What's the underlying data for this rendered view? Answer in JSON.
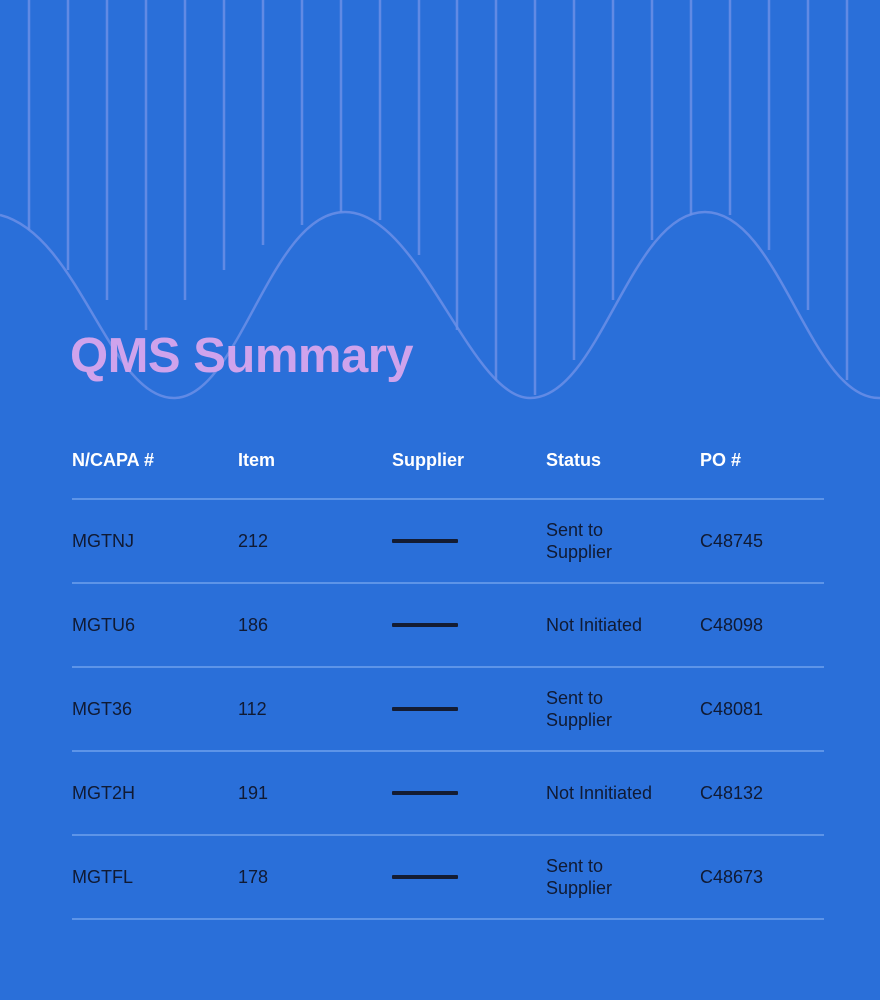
{
  "page": {
    "title": "QMS Summary"
  },
  "table": {
    "columns": [
      "N/CAPA #",
      "Item",
      "Supplier",
      "Status",
      "PO #"
    ],
    "rows": [
      {
        "id": "MGTNJ",
        "item": "212",
        "supplier": "",
        "status": "Sent to Supplier",
        "po": "C48745"
      },
      {
        "id": "MGTU6",
        "item": "186",
        "supplier": "",
        "status": "Not Initiated",
        "po": "C48098"
      },
      {
        "id": "MGT36",
        "item": "112",
        "supplier": "",
        "status": "Sent to Supplier",
        "po": "C48081"
      },
      {
        "id": "MGT2H",
        "item": "191",
        "supplier": "",
        "status": "Not Innitiated",
        "po": "C48132"
      },
      {
        "id": "MGTFL",
        "item": "178",
        "supplier": "",
        "status": "Sent to Supplier",
        "po": "C48673"
      }
    ]
  },
  "colors": {
    "background": "#2a6fd9",
    "title": "#cfa3ec",
    "header_text": "#ffffff",
    "cell_text": "#101a33",
    "divider": "#5d94e8",
    "decor_lines": "#6b8fe6"
  },
  "icons": {
    "supplier_placeholder": "dash-icon"
  }
}
